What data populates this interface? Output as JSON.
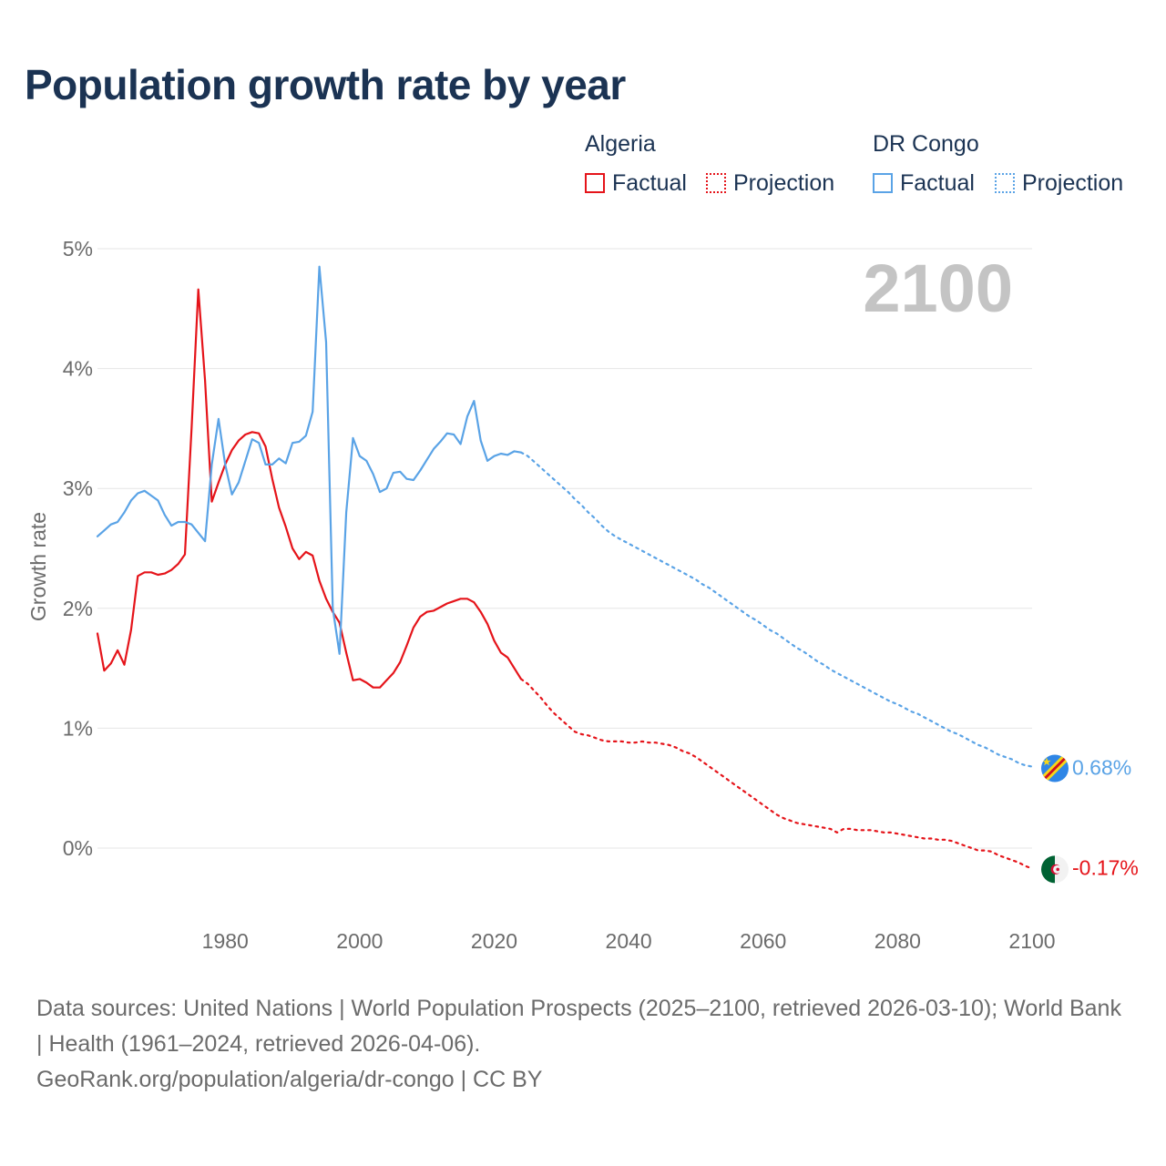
{
  "title": "Population growth rate by year",
  "legend": {
    "groups": [
      {
        "name": "Algeria",
        "factual": "Factual",
        "projection": "Projection"
      },
      {
        "name": "DR Congo",
        "factual": "Factual",
        "projection": "Projection"
      }
    ]
  },
  "colors": {
    "algeria": "#e5141a",
    "drcongo": "#5aa3e6",
    "grid": "#e6e6e6",
    "axis_text": "#6b6b6b",
    "year_label": "#c4c4c4"
  },
  "footer": {
    "sources": "Data sources: United Nations | World Population Prospects (2025–2100, retrieved 2026-03-10); World Bank | Health (1961–2024, retrieved 2026-04-06).",
    "link": "GeoRank.org/population/algeria/dr-congo | CC BY"
  },
  "chart_data": {
    "type": "line",
    "title": "Population growth rate by year",
    "year_label": "2100",
    "ylabel": "Growth rate",
    "xlim": [
      1961,
      2100
    ],
    "ylim": [
      -0.6,
      5.0
    ],
    "x_ticks": [
      1980,
      2000,
      2020,
      2040,
      2060,
      2080,
      2100
    ],
    "x_tick_labels": [
      "1980",
      "2000",
      "2020",
      "2040",
      "2060",
      "2080",
      "2100"
    ],
    "y_ticks": [
      0,
      1,
      2,
      3,
      4,
      5
    ],
    "y_tick_labels": [
      "0%",
      "1%",
      "2%",
      "3%",
      "4%",
      "5%"
    ],
    "end_labels": {
      "drcongo": "0.68%",
      "algeria": "-0.17%"
    },
    "series": [
      {
        "name": "Algeria",
        "kind": "factual",
        "color": "#e5141a",
        "x": [
          1961,
          1962,
          1963,
          1964,
          1965,
          1966,
          1967,
          1968,
          1969,
          1970,
          1971,
          1972,
          1973,
          1974,
          1975,
          1976,
          1977,
          1978,
          1979,
          1980,
          1981,
          1982,
          1983,
          1984,
          1985,
          1986,
          1987,
          1988,
          1989,
          1990,
          1991,
          1992,
          1993,
          1994,
          1995,
          1996,
          1997,
          1998,
          1999,
          2000,
          2001,
          2002,
          2003,
          2004,
          2005,
          2006,
          2007,
          2008,
          2009,
          2010,
          2011,
          2012,
          2013,
          2014,
          2015,
          2016,
          2017,
          2018,
          2019,
          2020,
          2021,
          2022,
          2023,
          2024
        ],
        "y": [
          1.79,
          1.48,
          1.54,
          1.65,
          1.53,
          1.82,
          2.27,
          2.3,
          2.3,
          2.28,
          2.29,
          2.32,
          2.37,
          2.45,
          3.5,
          4.66,
          3.9,
          2.89,
          3.05,
          3.2,
          3.32,
          3.4,
          3.45,
          3.47,
          3.46,
          3.35,
          3.08,
          2.84,
          2.68,
          2.5,
          2.41,
          2.47,
          2.44,
          2.23,
          2.08,
          1.97,
          1.88,
          1.63,
          1.4,
          1.41,
          1.38,
          1.34,
          1.34,
          1.4,
          1.46,
          1.55,
          1.69,
          1.84,
          1.93,
          1.97,
          1.98,
          2.01,
          2.04,
          2.06,
          2.08,
          2.08,
          2.05,
          1.97,
          1.87,
          1.73,
          1.63,
          1.59,
          1.5,
          1.41
        ]
      },
      {
        "name": "Algeria",
        "kind": "projection",
        "color": "#e5141a",
        "x": [
          2024,
          2025,
          2026,
          2027,
          2028,
          2029,
          2030,
          2031,
          2032,
          2033,
          2034,
          2035,
          2036,
          2037,
          2038,
          2039,
          2040,
          2041,
          2042,
          2043,
          2044,
          2045,
          2046,
          2047,
          2048,
          2049,
          2050,
          2051,
          2052,
          2053,
          2054,
          2055,
          2056,
          2057,
          2058,
          2059,
          2060,
          2061,
          2062,
          2063,
          2064,
          2065,
          2066,
          2067,
          2068,
          2069,
          2070,
          2071,
          2072,
          2073,
          2074,
          2075,
          2076,
          2077,
          2078,
          2079,
          2080,
          2081,
          2082,
          2083,
          2084,
          2085,
          2086,
          2087,
          2088,
          2089,
          2090,
          2091,
          2092,
          2093,
          2094,
          2095,
          2096,
          2097,
          2098,
          2099,
          2100
        ],
        "y": [
          1.41,
          1.37,
          1.31,
          1.25,
          1.18,
          1.12,
          1.07,
          1.02,
          0.97,
          0.95,
          0.94,
          0.92,
          0.9,
          0.89,
          0.89,
          0.89,
          0.88,
          0.88,
          0.89,
          0.88,
          0.88,
          0.87,
          0.86,
          0.84,
          0.81,
          0.79,
          0.76,
          0.72,
          0.68,
          0.64,
          0.6,
          0.56,
          0.52,
          0.48,
          0.44,
          0.4,
          0.36,
          0.32,
          0.28,
          0.25,
          0.23,
          0.21,
          0.2,
          0.19,
          0.18,
          0.17,
          0.16,
          0.13,
          0.16,
          0.16,
          0.15,
          0.15,
          0.15,
          0.14,
          0.13,
          0.13,
          0.12,
          0.11,
          0.1,
          0.09,
          0.08,
          0.08,
          0.07,
          0.07,
          0.06,
          0.04,
          0.02,
          0.0,
          -0.02,
          -0.02,
          -0.03,
          -0.06,
          -0.08,
          -0.1,
          -0.12,
          -0.15,
          -0.17
        ]
      },
      {
        "name": "DR Congo",
        "kind": "factual",
        "color": "#5aa3e6",
        "x": [
          1961,
          1962,
          1963,
          1964,
          1965,
          1966,
          1967,
          1968,
          1969,
          1970,
          1971,
          1972,
          1973,
          1974,
          1975,
          1976,
          1977,
          1978,
          1979,
          1980,
          1981,
          1982,
          1983,
          1984,
          1985,
          1986,
          1987,
          1988,
          1989,
          1990,
          1991,
          1992,
          1993,
          1994,
          1995,
          1996,
          1997,
          1998,
          1999,
          2000,
          2001,
          2002,
          2003,
          2004,
          2005,
          2006,
          2007,
          2008,
          2009,
          2010,
          2011,
          2012,
          2013,
          2014,
          2015,
          2016,
          2017,
          2018,
          2019,
          2020,
          2021,
          2022,
          2023,
          2024
        ],
        "y": [
          2.6,
          2.65,
          2.7,
          2.72,
          2.8,
          2.9,
          2.96,
          2.98,
          2.94,
          2.9,
          2.78,
          2.69,
          2.72,
          2.72,
          2.7,
          2.63,
          2.56,
          3.2,
          3.58,
          3.2,
          2.95,
          3.05,
          3.23,
          3.41,
          3.38,
          3.2,
          3.2,
          3.25,
          3.21,
          3.38,
          3.39,
          3.44,
          3.64,
          4.85,
          4.22,
          2.0,
          1.62,
          2.8,
          3.42,
          3.27,
          3.23,
          3.12,
          2.97,
          3.0,
          3.13,
          3.14,
          3.08,
          3.07,
          3.15,
          3.24,
          3.33,
          3.39,
          3.46,
          3.45,
          3.37,
          3.6,
          3.73,
          3.4,
          3.23,
          3.27,
          3.29,
          3.28,
          3.31,
          3.3
        ]
      },
      {
        "name": "DR Congo",
        "kind": "projection",
        "color": "#5aa3e6",
        "x": [
          2024,
          2025,
          2026,
          2027,
          2028,
          2029,
          2030,
          2031,
          2032,
          2033,
          2034,
          2035,
          2036,
          2037,
          2038,
          2039,
          2040,
          2041,
          2042,
          2043,
          2044,
          2045,
          2046,
          2047,
          2048,
          2049,
          2050,
          2051,
          2052,
          2053,
          2054,
          2055,
          2056,
          2057,
          2058,
          2059,
          2060,
          2061,
          2062,
          2063,
          2064,
          2065,
          2066,
          2067,
          2068,
          2069,
          2070,
          2071,
          2072,
          2073,
          2074,
          2075,
          2076,
          2077,
          2078,
          2079,
          2080,
          2081,
          2082,
          2083,
          2084,
          2085,
          2086,
          2087,
          2088,
          2089,
          2090,
          2091,
          2092,
          2093,
          2094,
          2095,
          2096,
          2097,
          2098,
          2099,
          2100
        ],
        "y": [
          3.3,
          3.27,
          3.22,
          3.17,
          3.12,
          3.07,
          3.02,
          2.97,
          2.91,
          2.86,
          2.8,
          2.75,
          2.69,
          2.64,
          2.6,
          2.57,
          2.54,
          2.51,
          2.48,
          2.45,
          2.42,
          2.39,
          2.36,
          2.33,
          2.3,
          2.27,
          2.24,
          2.2,
          2.17,
          2.13,
          2.09,
          2.05,
          2.01,
          1.97,
          1.93,
          1.9,
          1.86,
          1.82,
          1.79,
          1.75,
          1.71,
          1.67,
          1.64,
          1.6,
          1.56,
          1.53,
          1.49,
          1.46,
          1.43,
          1.4,
          1.37,
          1.34,
          1.31,
          1.28,
          1.25,
          1.22,
          1.2,
          1.17,
          1.14,
          1.12,
          1.09,
          1.06,
          1.03,
          1.0,
          0.97,
          0.95,
          0.92,
          0.89,
          0.86,
          0.84,
          0.81,
          0.78,
          0.76,
          0.74,
          0.71,
          0.69,
          0.68
        ]
      }
    ]
  }
}
